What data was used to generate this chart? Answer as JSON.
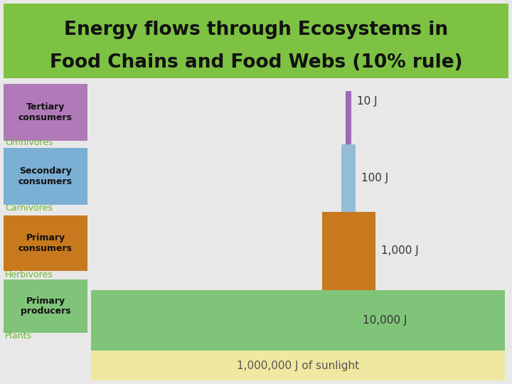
{
  "title_line1": "Energy flows through Ecosystems in",
  "title_line2": "Food Chains and Food Webs (10% rule)",
  "title_bg": "#7dc243",
  "title_color": "#111111",
  "bg_color": "#e8e8e8",
  "levels": [
    {
      "label_box": "Tertiary\nconsumers",
      "label_box_color": "#b07ab8",
      "sublabel": "Omnivores",
      "sublabel_color": "#6db830"
    },
    {
      "label_box": "Secondary\nconsumers",
      "label_box_color": "#7bafd4",
      "sublabel": "Carnivores",
      "sublabel_color": "#6db830"
    },
    {
      "label_box": "Primary\nconsumers",
      "label_box_color": "#c8791e",
      "sublabel": "Herbivores",
      "sublabel_color": "#6db830"
    },
    {
      "label_box": "Primary\nproducers",
      "label_box_color": "#80c47a",
      "sublabel": "Plants",
      "sublabel_color": "#6db830"
    }
  ],
  "producers_color": "#80c47a",
  "producers_label": "10,000 J",
  "primary_consumers_color": "#c8791e",
  "primary_consumers_label": "1,000 J",
  "secondary_consumers_color": "#92bcd8",
  "secondary_consumers_label": "100 J",
  "tertiary_consumers_color": "#9b6bb5",
  "tertiary_consumers_label": "10 J",
  "sunlight_color": "#f0e8a0",
  "sunlight_label": "1,000,000 J of sunlight",
  "label_color": "#333333"
}
